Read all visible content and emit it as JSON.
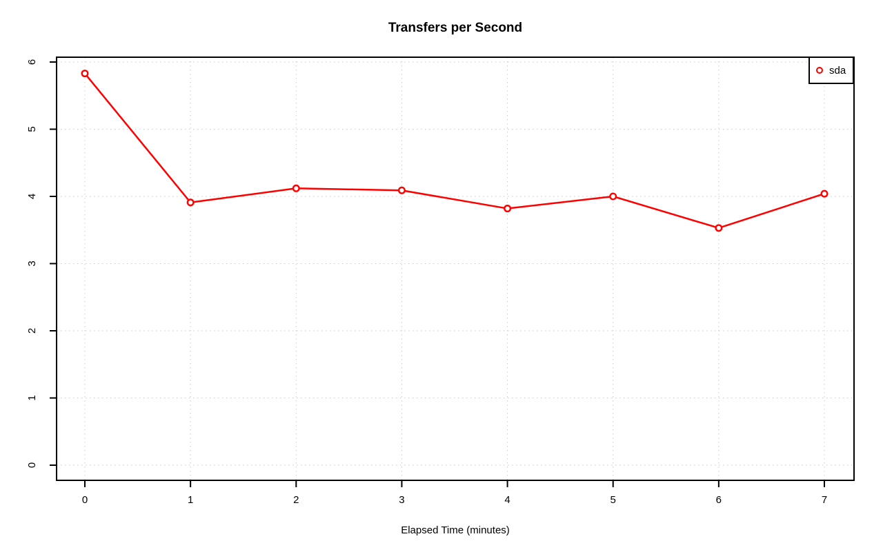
{
  "chart_data": {
    "type": "line",
    "title": "Transfers per Second",
    "xlabel": "Elapsed Time (minutes)",
    "ylabel": "",
    "x": [
      0,
      1,
      2,
      3,
      4,
      5,
      6,
      7
    ],
    "series": [
      {
        "name": "sda",
        "color": "#ff0000",
        "marker": "open-circle",
        "values": [
          5.83,
          3.91,
          4.12,
          4.09,
          3.82,
          4.0,
          3.53,
          4.04
        ]
      }
    ],
    "x_ticks": [
      0,
      1,
      2,
      3,
      4,
      5,
      6,
      7
    ],
    "y_ticks": [
      0,
      1,
      2,
      3,
      4,
      5,
      6
    ],
    "xlim": [
      0,
      7
    ],
    "ylim": [
      0,
      6
    ],
    "grid": {
      "visible": true,
      "style": "dotted",
      "color": "#c9c9c9"
    },
    "axis_color": "#000000",
    "background": "#ffffff",
    "legend": {
      "position": "top-right",
      "entries": [
        {
          "label": "sda",
          "color": "#ff0000",
          "marker": "open-circle"
        }
      ]
    }
  }
}
